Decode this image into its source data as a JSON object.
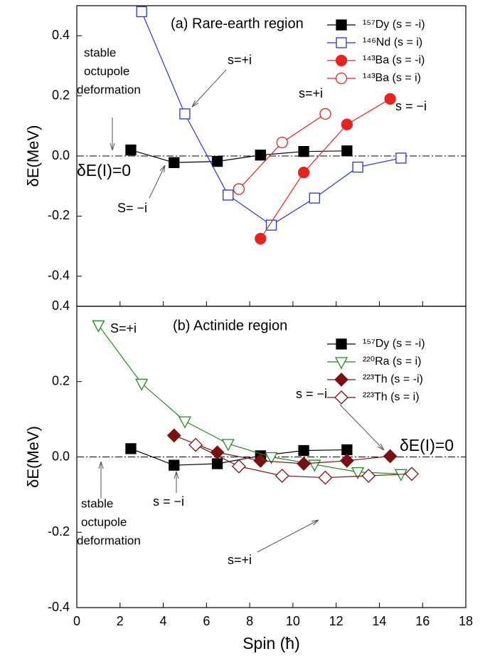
{
  "chart_data": [
    {
      "type": "line",
      "ylabel": "δE(MeV)",
      "xlim": [
        0,
        18
      ],
      "ylim": [
        -0.5,
        0.5
      ],
      "yticks": [
        -0.4,
        -0.2,
        {
          "value": 0,
          "label": "0.0"
        },
        0.2,
        0.4
      ],
      "annotations": [
        {
          "text": "(a) Rare-earth region",
          "color": "#000000"
        },
        {
          "text": "s=+i",
          "color": "#2233dd"
        },
        {
          "text": "stable",
          "color": "#000000"
        },
        {
          "text": "octupole",
          "color": "#000000"
        },
        {
          "text": "deformation",
          "color": "#000000"
        },
        {
          "text": "δE(I)=0",
          "color": "#000000"
        },
        {
          "text": "S= −i",
          "color": "#000000"
        },
        {
          "text": "s=+i",
          "color": "#e8231f"
        },
        {
          "text": "s = −i",
          "color": "#e8231f"
        }
      ],
      "series": [
        {
          "name": "¹⁵⁷Dy (s = -i)",
          "color": "#000000",
          "marker": "square",
          "filled": true,
          "x": [
            2.5,
            4.5,
            6.5,
            8.5,
            10.5,
            12.5
          ],
          "values": [
            0.02,
            -0.022,
            -0.018,
            0.003,
            0.015,
            0.017
          ]
        },
        {
          "name": "¹⁴⁶Nd (s = i)",
          "color": "#2233dd",
          "marker": "square",
          "filled": false,
          "x": [
            3,
            5,
            7,
            9,
            11,
            13,
            15
          ],
          "values": [
            0.48,
            0.14,
            -0.13,
            -0.23,
            -0.14,
            -0.037,
            -0.007
          ]
        },
        {
          "name": "¹⁴³Ba (s = -i)",
          "color": "#e8231f",
          "marker": "circle",
          "filled": true,
          "x": [
            8.5,
            10.5,
            12.5,
            14.5
          ],
          "values": [
            -0.275,
            -0.055,
            0.105,
            0.19
          ]
        },
        {
          "name": "¹⁴³Ba (s = i)",
          "color": "#e8231f",
          "marker": "circle",
          "filled": false,
          "x": [
            7.5,
            9.5,
            11.5
          ],
          "values": [
            -0.11,
            0.045,
            0.14
          ]
        }
      ]
    },
    {
      "type": "line",
      "ylabel": "δE(MeV)",
      "xlabel": "Spin (ħ)",
      "xlim": [
        0,
        18
      ],
      "ylim": [
        -0.4,
        0.4
      ],
      "xticks": [
        0,
        2,
        4,
        6,
        8,
        10,
        12,
        14,
        16,
        18
      ],
      "yticks": [
        -0.4,
        -0.2,
        {
          "value": 0,
          "label": "0.0"
        },
        0.2,
        0.4
      ],
      "annotations": [
        {
          "text": "(b) Actinide region",
          "color": "#000000"
        },
        {
          "text": "S=+i",
          "color": "#1f8a1f"
        },
        {
          "text": "s = −i",
          "color": "#7b1010"
        },
        {
          "text": "δE(I)=0",
          "color": "#000000"
        },
        {
          "text": "stable",
          "color": "#000000"
        },
        {
          "text": "octupole",
          "color": "#000000"
        },
        {
          "text": "deformation",
          "color": "#000000"
        },
        {
          "text": "s = −i",
          "color": "#000000"
        },
        {
          "text": "s=+i",
          "color": "#7b1010"
        }
      ],
      "series": [
        {
          "name": "¹⁵⁷Dy (s = -i)",
          "color": "#000000",
          "marker": "square",
          "filled": true,
          "x": [
            2.5,
            4.5,
            6.5,
            8.5,
            10.5,
            12.5
          ],
          "values": [
            0.022,
            -0.022,
            -0.018,
            0.003,
            0.017,
            0.019
          ]
        },
        {
          "name": "²²⁰Ra (s = i)",
          "color": "#1f8a1f",
          "marker": "triangle-down",
          "filled": false,
          "x": [
            1,
            3,
            5,
            7,
            9,
            11,
            13,
            15
          ],
          "values": [
            0.35,
            0.195,
            0.095,
            0.035,
            0.0,
            -0.02,
            -0.04,
            -0.045
          ]
        },
        {
          "name": "²²³Th (s = -i)",
          "color": "#7b1010",
          "marker": "diamond",
          "filled": true,
          "x": [
            4.5,
            6.5,
            8.5,
            10.5,
            12.5,
            14.5
          ],
          "values": [
            0.057,
            0.012,
            -0.01,
            -0.018,
            -0.01,
            0.002
          ]
        },
        {
          "name": "²²³Th (s = i)",
          "color": "#7b1010",
          "marker": "diamond",
          "filled": false,
          "x": [
            5.5,
            7.5,
            9.5,
            11.5,
            13.5,
            15.5
          ],
          "values": [
            0.032,
            -0.025,
            -0.05,
            -0.055,
            -0.05,
            -0.045
          ]
        }
      ]
    }
  ]
}
